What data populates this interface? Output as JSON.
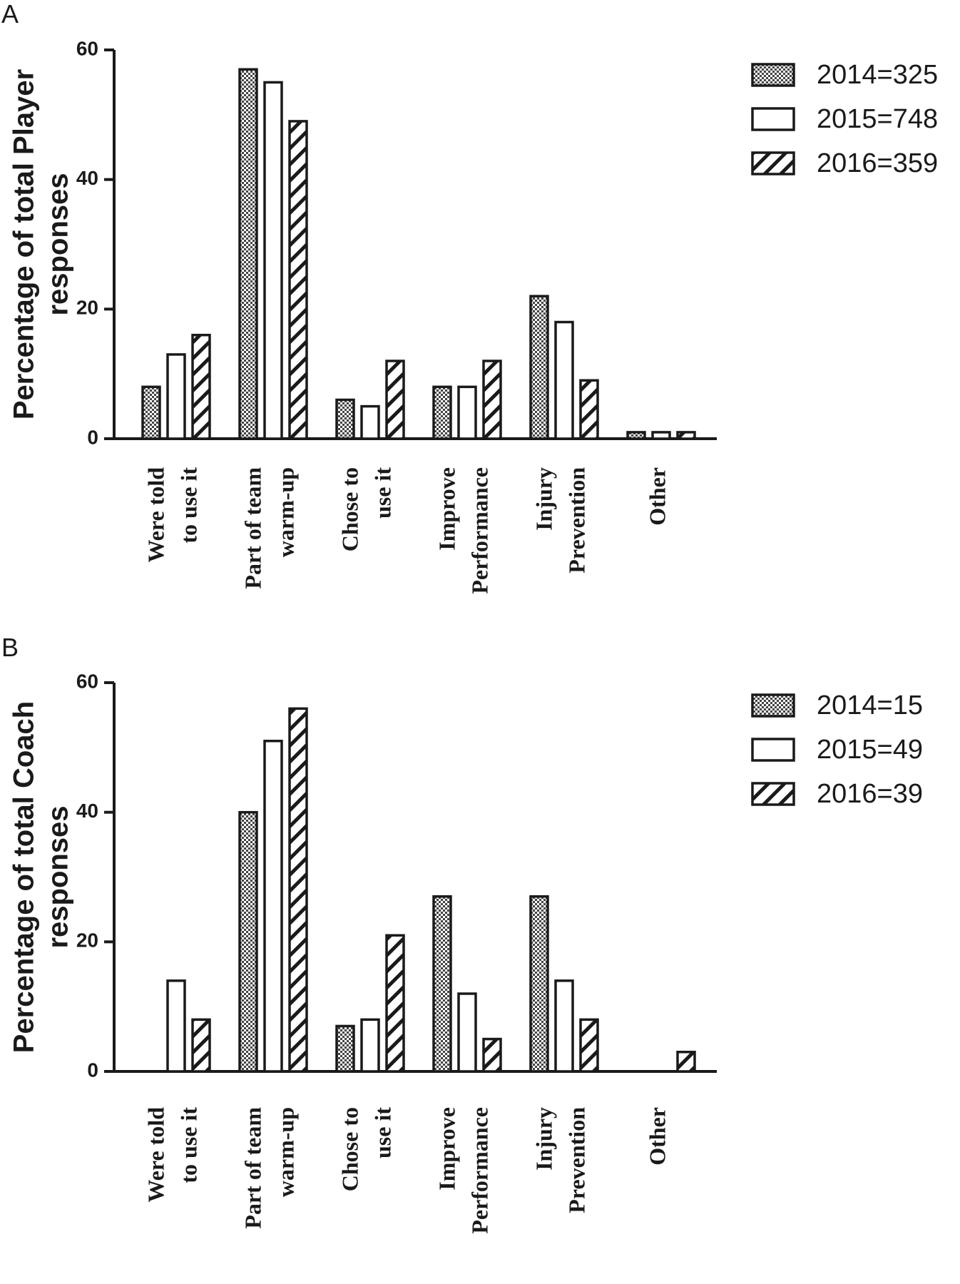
{
  "chart_data": [
    {
      "panel": "A",
      "type": "bar",
      "ylabel_lines": [
        "Percentage of total Player",
        "responses"
      ],
      "ylim": [
        0,
        60
      ],
      "yticks": [
        0,
        20,
        40,
        60
      ],
      "categories": [
        [
          "Were told",
          "to use it"
        ],
        [
          "Part of team",
          "warm-up"
        ],
        [
          "Chose to",
          "use it"
        ],
        [
          "Improve",
          "Performance"
        ],
        [
          "Injury",
          "Prevention"
        ],
        [
          "Other"
        ]
      ],
      "series": [
        {
          "name": "2014=325",
          "pattern": "dots",
          "values": [
            8,
            57,
            6,
            8,
            22,
            1
          ]
        },
        {
          "name": "2015=748",
          "pattern": "open",
          "values": [
            13,
            55,
            5,
            8,
            18,
            1
          ]
        },
        {
          "name": "2016=359",
          "pattern": "hatch",
          "values": [
            16,
            49,
            12,
            12,
            9,
            1
          ]
        }
      ],
      "legend_position": "top-right"
    },
    {
      "panel": "B",
      "type": "bar",
      "ylabel_lines": [
        "Percentage of total Coach",
        "responses"
      ],
      "ylim": [
        0,
        60
      ],
      "yticks": [
        0,
        20,
        40,
        60
      ],
      "categories": [
        [
          "Were told",
          "to use it"
        ],
        [
          "Part of team",
          "warm-up"
        ],
        [
          "Chose to",
          "use it"
        ],
        [
          "Improve",
          "Performance"
        ],
        [
          "Injury",
          "Prevention"
        ],
        [
          "Other"
        ]
      ],
      "series": [
        {
          "name": "2014=15",
          "pattern": "dots",
          "values": [
            0,
            40,
            7,
            27,
            27,
            0
          ]
        },
        {
          "name": "2015=49",
          "pattern": "open",
          "values": [
            14,
            51,
            8,
            12,
            14,
            0
          ]
        },
        {
          "name": "2016=39",
          "pattern": "hatch",
          "values": [
            8,
            56,
            21,
            5,
            8,
            3
          ]
        }
      ],
      "legend_position": "top-right"
    }
  ]
}
